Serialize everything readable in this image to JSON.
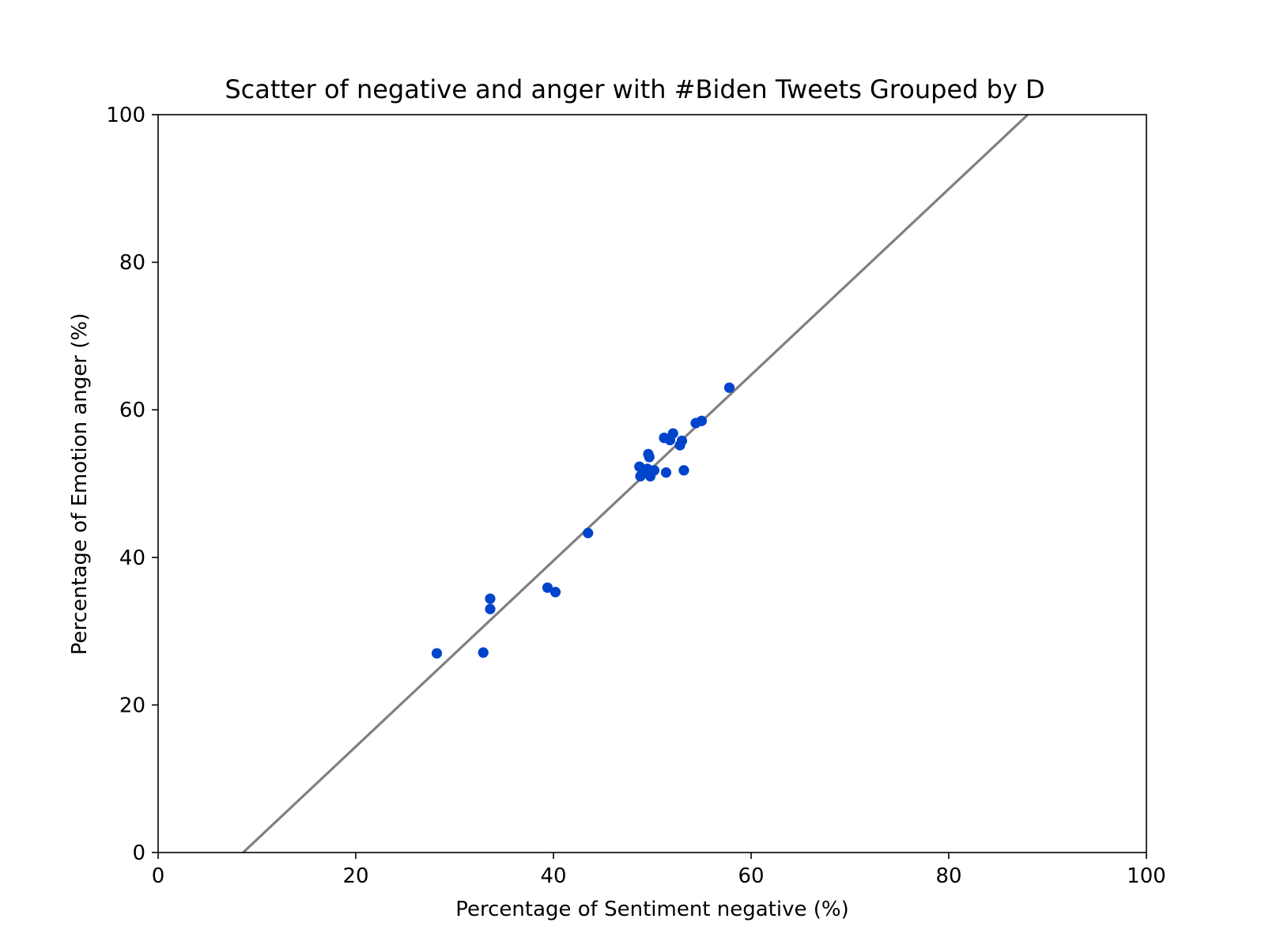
{
  "chart_data": {
    "type": "scatter",
    "title": "Scatter of negative and anger with #Biden Tweets Grouped by D",
    "xlabel": "Percentage of Sentiment negative (%)",
    "ylabel": "Percentage of Emotion anger (%)",
    "xlim": [
      0,
      100
    ],
    "ylim": [
      0,
      100
    ],
    "xticks": [
      "0",
      "20",
      "40",
      "60",
      "80",
      "100"
    ],
    "yticks": [
      "0",
      "20",
      "40",
      "60",
      "80",
      "100"
    ],
    "grid": false,
    "colors": {
      "points": "#0044cc",
      "fit_line": "#808080",
      "axes": "#000000"
    },
    "points": [
      {
        "x": 28.2,
        "y": 27.0
      },
      {
        "x": 32.9,
        "y": 27.1
      },
      {
        "x": 33.6,
        "y": 33.0
      },
      {
        "x": 33.6,
        "y": 34.4
      },
      {
        "x": 39.4,
        "y": 35.9
      },
      {
        "x": 40.2,
        "y": 35.3
      },
      {
        "x": 43.5,
        "y": 43.3
      },
      {
        "x": 48.7,
        "y": 52.3
      },
      {
        "x": 48.8,
        "y": 51.0
      },
      {
        "x": 49.1,
        "y": 51.6
      },
      {
        "x": 49.5,
        "y": 52.0
      },
      {
        "x": 49.6,
        "y": 54.0
      },
      {
        "x": 49.7,
        "y": 53.6
      },
      {
        "x": 49.8,
        "y": 51.0
      },
      {
        "x": 50.2,
        "y": 51.8
      },
      {
        "x": 51.2,
        "y": 56.2
      },
      {
        "x": 51.4,
        "y": 51.5
      },
      {
        "x": 51.8,
        "y": 55.9
      },
      {
        "x": 52.1,
        "y": 56.8
      },
      {
        "x": 52.8,
        "y": 55.2
      },
      {
        "x": 53.0,
        "y": 55.8
      },
      {
        "x": 53.2,
        "y": 51.8
      },
      {
        "x": 54.4,
        "y": 58.2
      },
      {
        "x": 55.0,
        "y": 58.5
      },
      {
        "x": 57.8,
        "y": 63.0
      }
    ],
    "fit_line": [
      {
        "x": 8.6,
        "y": 0
      },
      {
        "x": 88.0,
        "y": 100
      }
    ]
  }
}
